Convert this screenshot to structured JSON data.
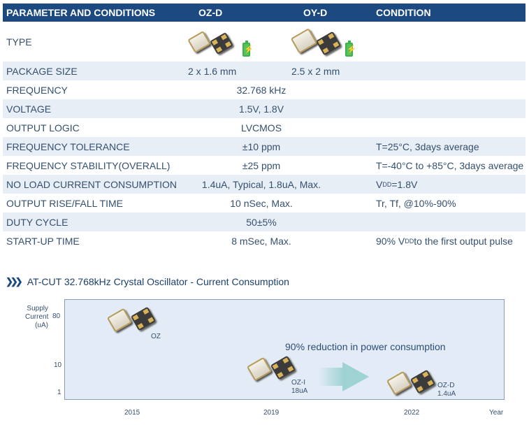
{
  "table": {
    "headers": [
      "PARAMETER AND CONDITIONS",
      "OZ-D",
      "OY-D",
      "CONDITION"
    ],
    "type_label": "TYPE",
    "rows": [
      {
        "param": "PACKAGE SIZE",
        "oz": "2 x 1.6 mm",
        "oy": "2.5 x 2 mm",
        "cond": ""
      },
      {
        "param": "FREQUENCY",
        "merged": "32.768 kHz",
        "cond": ""
      },
      {
        "param": "VOLTAGE",
        "merged": "1.5V, 1.8V",
        "cond": ""
      },
      {
        "param": "OUTPUT LOGIC",
        "merged": "LVCMOS",
        "cond": ""
      },
      {
        "param": "FREQUENCY TOLERANCE",
        "merged": "±10 ppm",
        "cond": "T=25°C, 3days average"
      },
      {
        "param": "FREQUENCY STABILITY(OVERALL)",
        "merged": "±25 ppm",
        "cond": "T=-40°C to +85°C, 3days average"
      },
      {
        "param": "NO LOAD CURRENT CONSUMPTION",
        "merged": "1.4uA, Typical, 1.8uA, Max.",
        "cond_pre": "V",
        "cond_sub": "DD",
        "cond_post": "=1.8V"
      },
      {
        "param": "OUTPUT RISE/FALL TIME",
        "merged": "10 nSec, Max.",
        "cond": "Tr, Tf, @10%-90%"
      },
      {
        "param": "DUTY CYCLE",
        "merged": "50±5%",
        "cond": ""
      },
      {
        "param": "START-UP TIME",
        "merged": "8 mSec, Max.",
        "cond_pre": "90% V",
        "cond_sub": "DD",
        "cond_post": " to the first output pulse"
      }
    ]
  },
  "chart": {
    "title": "AT-CUT 32.768kHz Crystal Oscillator - Current Consumption",
    "ylabel": [
      "Supply",
      "Current",
      "(uA)"
    ],
    "yticks": [
      "80",
      "10",
      "1"
    ],
    "xticks": [
      "2015",
      "2019",
      "2022"
    ],
    "xlabel": "Year",
    "headline": "90% reduction in power consumption",
    "products": [
      {
        "name": "OZ",
        "value": ""
      },
      {
        "name": "OZ-I",
        "value": "18uA"
      },
      {
        "name": "OZ-D",
        "value": "1.4uA"
      }
    ]
  },
  "colors": {
    "header": "#1c4a80",
    "row_alt": "#e8eef6",
    "plot_bg": "#e3ecf6",
    "arrow": "#9fd3d3",
    "battery": "#58c25a"
  }
}
